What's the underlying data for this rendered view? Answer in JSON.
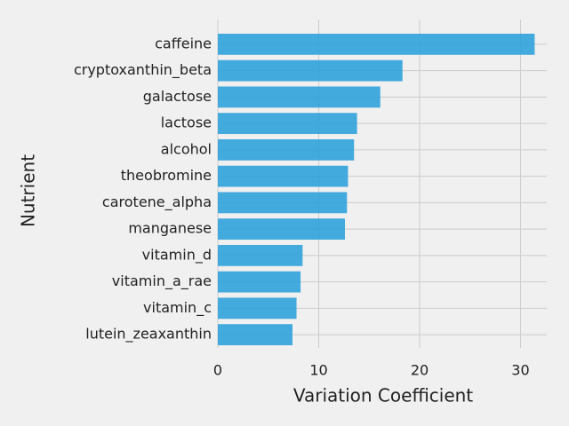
{
  "chart_data": {
    "type": "barh",
    "xlabel": "Variation Coefficient",
    "ylabel": "Nutrient",
    "categories": [
      "caffeine",
      "cryptoxanthin_beta",
      "galactose",
      "lactose",
      "alcohol",
      "theobromine",
      "carotene_alpha",
      "manganese",
      "vitamin_d",
      "vitamin_a_rae",
      "vitamin_c",
      "lutein_zeaxanthin"
    ],
    "values": [
      31.4,
      18.3,
      16.1,
      13.8,
      13.5,
      12.9,
      12.8,
      12.6,
      8.4,
      8.2,
      7.8,
      7.4
    ],
    "color": "#30a2da",
    "xlim": [
      0,
      32.6
    ],
    "xticks": [
      0,
      10,
      20,
      30
    ],
    "grid": true
  }
}
